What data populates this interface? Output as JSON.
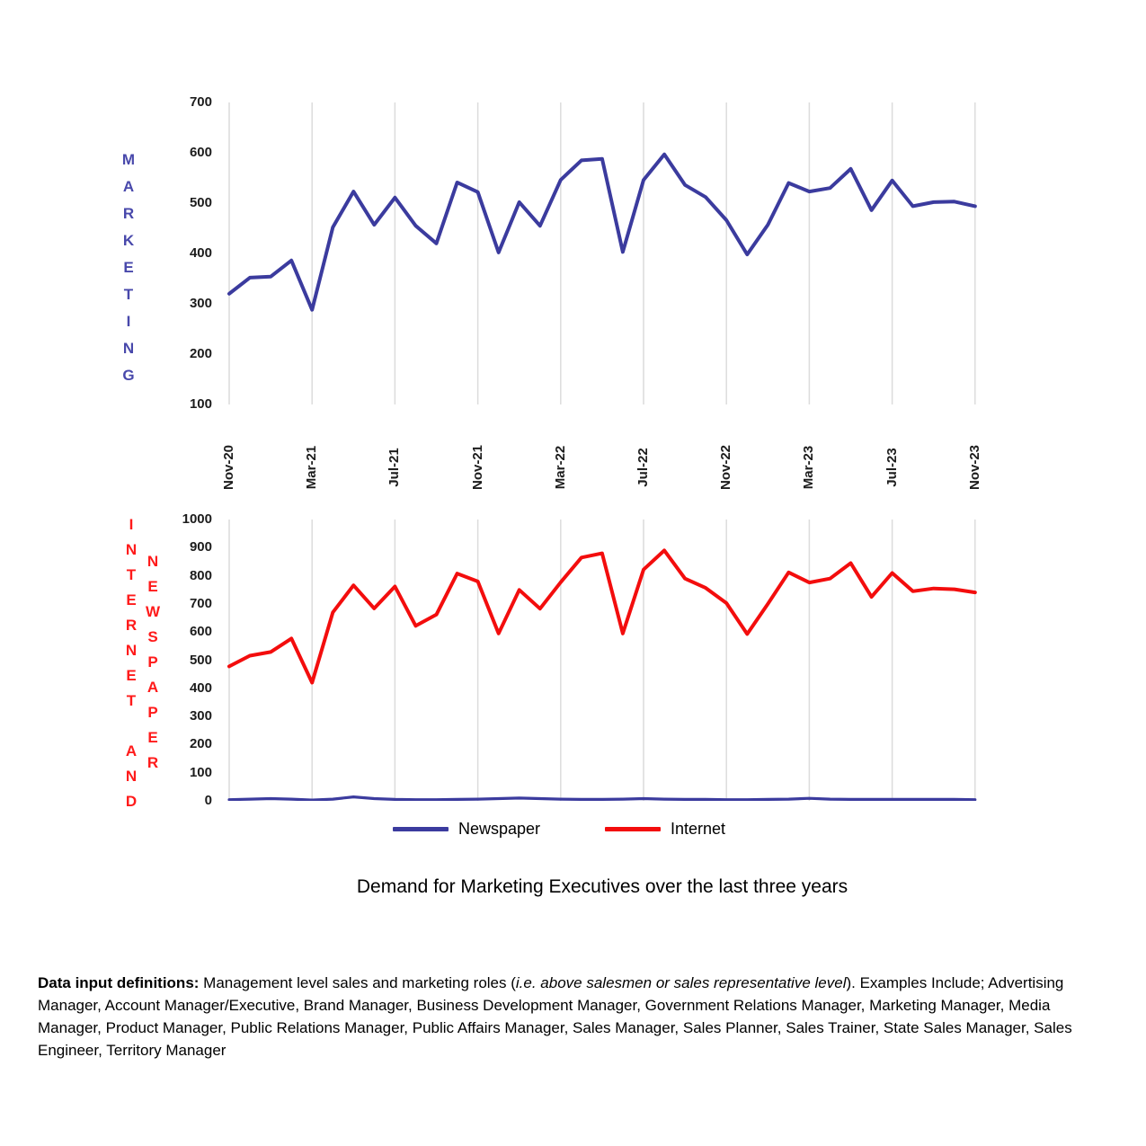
{
  "title": "Demand for Marketing Executives over the last three years",
  "colors": {
    "blue_line": "#3B3B9E",
    "red_line": "#F30D0D",
    "axis_title_blue": "#4848AB",
    "axis_title_red": "#FF1A1A",
    "gridline": "#DCDCDC",
    "tick_text": "#1c1c1c"
  },
  "axis_titles": {
    "marketing": {
      "text": "MARKETING",
      "color": "#4848AB"
    },
    "internet_and": {
      "text": "INTERNET AND",
      "color": "#FF1A1A"
    },
    "newspaper": {
      "text": "NEWSPAPER",
      "color": "#FF1A1A"
    }
  },
  "legend": {
    "items": [
      {
        "label": "Newspaper",
        "color": "#3B3B9E"
      },
      {
        "label": "Internet",
        "color": "#F30D0D"
      }
    ]
  },
  "definitions": {
    "lead": "Data input definitions:",
    "body1": "  Management level sales and marketing roles (",
    "italic": "i.e. above salesmen or sales representative level",
    "body2": ").  Examples Include; Advertising Manager, Account Manager/Executive, Brand Manager, Business Development Manager, Government Relations Manager, Marketing Manager, Media Manager, Product Manager, Public Relations Manager, Public Affairs Manager, Sales Manager, Sales Planner, Sales Trainer, State Sales Manager, Sales Engineer, Territory Manager"
  },
  "chart_data": [
    {
      "type": "line",
      "axis_title": "MARKETING",
      "grid": "vertical",
      "legend_position": "shared-bottom",
      "ylim": [
        100,
        700
      ],
      "y_ticks": [
        700,
        600,
        500,
        400,
        300,
        200,
        100
      ],
      "x": [
        "Nov-20",
        "Dec-20",
        "Jan-21",
        "Feb-21",
        "Mar-21",
        "Apr-21",
        "May-21",
        "Jun-21",
        "Jul-21",
        "Aug-21",
        "Sep-21",
        "Oct-21",
        "Nov-21",
        "Dec-21",
        "Jan-22",
        "Feb-22",
        "Mar-22",
        "Apr-22",
        "May-22",
        "Jun-22",
        "Jul-22",
        "Aug-22",
        "Sep-22",
        "Oct-22",
        "Nov-22",
        "Dec-22",
        "Jan-23",
        "Feb-23",
        "Mar-23",
        "Apr-23",
        "May-23",
        "Jun-23",
        "Jul-23",
        "Aug-23",
        "Sep-23",
        "Oct-23",
        "Nov-23"
      ],
      "x_ticks_shown": [
        "Nov-20",
        "Mar-21",
        "Jul-21",
        "Nov-21",
        "Mar-22",
        "Jul-22",
        "Nov-22",
        "Mar-23",
        "Jul-23",
        "Nov-23"
      ],
      "series": [
        {
          "name": "Marketing",
          "color": "#3B3B9E",
          "values": [
            320,
            352,
            354,
            386,
            288,
            452,
            523,
            457,
            511,
            455,
            420,
            541,
            522,
            402,
            502,
            455,
            546,
            585,
            588,
            403,
            546,
            597,
            536,
            512,
            466,
            398,
            457,
            540,
            523,
            530,
            568,
            486,
            545,
            494,
            502,
            503,
            494
          ]
        }
      ]
    },
    {
      "type": "line",
      "axis_title": "INTERNET AND NEWSPAPER",
      "grid": "vertical",
      "legend_position": "shared-bottom",
      "ylim": [
        0,
        1000
      ],
      "y_ticks": [
        1000,
        900,
        800,
        700,
        600,
        500,
        400,
        300,
        200,
        100,
        0
      ],
      "x": [
        "Nov-20",
        "Dec-20",
        "Jan-21",
        "Feb-21",
        "Mar-21",
        "Apr-21",
        "May-21",
        "Jun-21",
        "Jul-21",
        "Aug-21",
        "Sep-21",
        "Oct-21",
        "Nov-21",
        "Dec-21",
        "Jan-22",
        "Feb-22",
        "Mar-22",
        "Apr-22",
        "May-22",
        "Jun-22",
        "Jul-22",
        "Aug-22",
        "Sep-22",
        "Oct-22",
        "Nov-22",
        "Dec-22",
        "Jan-23",
        "Feb-23",
        "Mar-23",
        "Apr-23",
        "May-23",
        "Jun-23",
        "Jul-23",
        "Aug-23",
        "Sep-23",
        "Oct-23",
        "Nov-23"
      ],
      "x_ticks_shown": [
        "Nov-20",
        "Mar-21",
        "Jul-21",
        "Nov-21",
        "Mar-22",
        "Jul-22",
        "Nov-22",
        "Mar-23",
        "Jul-23",
        "Nov-23"
      ],
      "series": [
        {
          "name": "Internet",
          "color": "#F30D0D",
          "values": [
            478,
            516,
            529,
            577,
            420,
            670,
            766,
            684,
            762,
            622,
            662,
            808,
            780,
            595,
            750,
            683,
            777,
            865,
            880,
            595,
            822,
            890,
            790,
            757,
            703,
            593,
            700,
            812,
            776,
            790,
            845,
            725,
            810,
            745,
            755,
            752,
            741
          ]
        },
        {
          "name": "Newspaper",
          "color": "#3B3B9E",
          "values": [
            4,
            6,
            8,
            6,
            3,
            6,
            14,
            8,
            5,
            4,
            4,
            5,
            6,
            8,
            10,
            8,
            6,
            5,
            5,
            6,
            8,
            6,
            5,
            5,
            4,
            4,
            5,
            6,
            9,
            6,
            5,
            5,
            5,
            5,
            5,
            5,
            4
          ]
        }
      ]
    }
  ]
}
